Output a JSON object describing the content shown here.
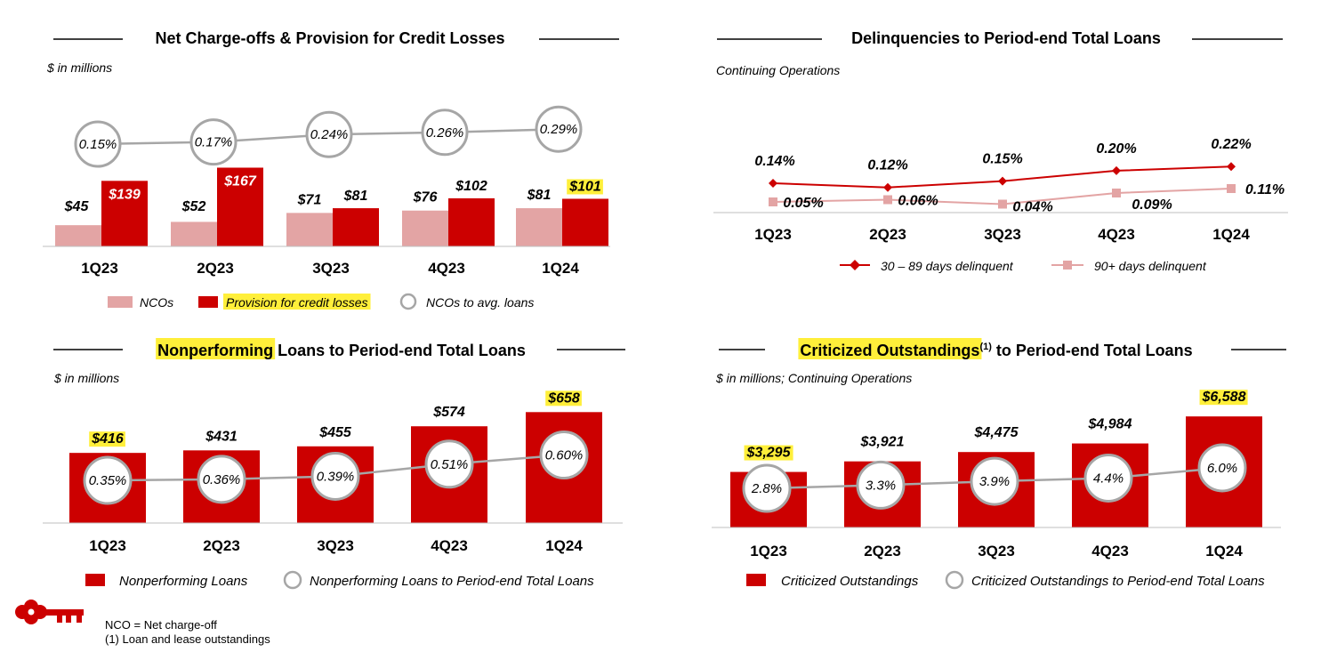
{
  "colors": {
    "red": "#cc0000",
    "pink": "#e3a4a4",
    "gray_line": "#a6a6a6",
    "highlight": "#ffef3a",
    "delinq_90": "#e3a4a4"
  },
  "logo": {
    "icon": "key-icon"
  },
  "footnotes": [
    "NCO = Net charge-off",
    "(1) Loan and lease outstandings"
  ],
  "chart_data": [
    {
      "id": "nco",
      "type": "bar",
      "title": "Net Charge-offs & Provision for Credit Losses",
      "subtitle": "$ in millions",
      "categories": [
        "1Q23",
        "2Q23",
        "3Q23",
        "4Q23",
        "1Q24"
      ],
      "series": [
        {
          "name": "NCOs",
          "values": [
            45,
            52,
            71,
            76,
            81
          ],
          "labels": [
            "$45",
            "$52",
            "$71",
            "$76",
            "$81"
          ]
        },
        {
          "name": "Provision for credit losses",
          "values": [
            139,
            167,
            81,
            102,
            101
          ],
          "labels": [
            "$139",
            "$167",
            "$81",
            "$102",
            "$101"
          ]
        },
        {
          "name": "NCOs to avg. loans",
          "type": "line",
          "values": [
            0.15,
            0.17,
            0.24,
            0.26,
            0.29
          ],
          "labels": [
            "0.15%",
            "0.17%",
            "0.24%",
            "0.26%",
            "0.29%"
          ]
        }
      ],
      "highlighted": [
        "Provision for credit losses",
        "$101"
      ]
    },
    {
      "id": "delinq",
      "type": "line",
      "title": "Delinquencies to Period-end Total Loans",
      "subtitle": "Continuing Operations",
      "categories": [
        "1Q23",
        "2Q23",
        "3Q23",
        "4Q23",
        "1Q24"
      ],
      "series": [
        {
          "name": "30 – 89 days delinquent",
          "values": [
            0.14,
            0.12,
            0.15,
            0.2,
            0.22
          ],
          "labels": [
            "0.14%",
            "0.12%",
            "0.15%",
            "0.20%",
            "0.22%"
          ]
        },
        {
          "name": "90+ days delinquent",
          "values": [
            0.05,
            0.06,
            0.04,
            0.09,
            0.11
          ],
          "labels": [
            "0.05%",
            "0.06%",
            "0.04%",
            "0.09%",
            "0.11%"
          ]
        }
      ]
    },
    {
      "id": "npl",
      "type": "bar",
      "title_highlight": "Nonperforming",
      "title_rest": " Loans to Period-end Total Loans",
      "subtitle": "$ in millions",
      "categories": [
        "1Q23",
        "2Q23",
        "3Q23",
        "4Q23",
        "1Q24"
      ],
      "series": [
        {
          "name": "Nonperforming Loans",
          "values": [
            416,
            431,
            455,
            574,
            658
          ],
          "labels": [
            "$416",
            "$431",
            "$455",
            "$574",
            "$658"
          ]
        },
        {
          "name": "Nonperforming Loans to Period-end Total Loans",
          "type": "line",
          "values": [
            0.35,
            0.36,
            0.39,
            0.51,
            0.6
          ],
          "labels": [
            "0.35%",
            "0.36%",
            "0.39%",
            "0.51%",
            "0.60%"
          ]
        }
      ],
      "highlighted": [
        "$416",
        "$658"
      ]
    },
    {
      "id": "crit",
      "type": "bar",
      "title_highlight": "Criticized Outstandings",
      "title_sup": "(1)",
      "title_rest": " to Period-end Total Loans",
      "subtitle": "$ in millions; Continuing Operations",
      "categories": [
        "1Q23",
        "2Q23",
        "3Q23",
        "4Q23",
        "1Q24"
      ],
      "series": [
        {
          "name": "Criticized Outstandings",
          "values": [
            3295,
            3921,
            4475,
            4984,
            6588
          ],
          "labels": [
            "$3,295",
            "$3,921",
            "$4,475",
            "$4,984",
            "$6,588"
          ]
        },
        {
          "name": "Criticized Outstandings to Period-end Total Loans",
          "type": "line",
          "values": [
            2.8,
            3.3,
            3.9,
            4.4,
            6.0
          ],
          "labels": [
            "2.8%",
            "3.3%",
            "3.9%",
            "4.4%",
            "6.0%"
          ]
        }
      ],
      "highlighted": [
        "$3,295",
        "$6,588"
      ]
    }
  ]
}
